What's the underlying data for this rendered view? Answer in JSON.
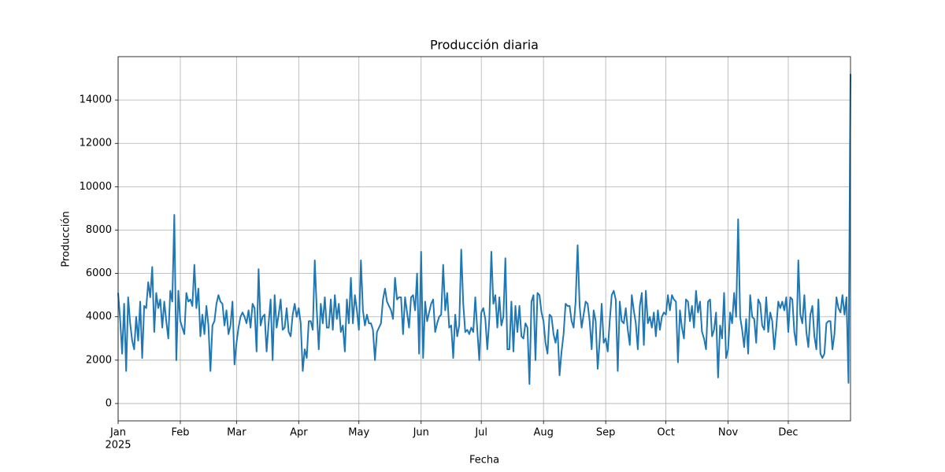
{
  "chart_data": {
    "type": "line",
    "title": "Producción diaria",
    "x_label": "Fecha",
    "y_label": "Producción",
    "x_year_label": "2025",
    "color": "#1f77b4",
    "grid": true,
    "xlim": [
      0,
      365
    ],
    "xticks": [
      {
        "value": 0,
        "label": "Jan"
      },
      {
        "value": 31,
        "label": "Feb"
      },
      {
        "value": 59,
        "label": "Mar"
      },
      {
        "value": 90,
        "label": "Apr"
      },
      {
        "value": 120,
        "label": "May"
      },
      {
        "value": 151,
        "label": "Jun"
      },
      {
        "value": 181,
        "label": "Jul"
      },
      {
        "value": 212,
        "label": "Aug"
      },
      {
        "value": 243,
        "label": "Sep"
      },
      {
        "value": 273,
        "label": "Oct"
      },
      {
        "value": 304,
        "label": "Nov"
      },
      {
        "value": 334,
        "label": "Dec"
      }
    ],
    "ylim": [
      -800,
      16000
    ],
    "yticks": [
      0,
      2000,
      4000,
      6000,
      8000,
      10000,
      12000,
      14000
    ],
    "values": [
      5100,
      3900,
      2300,
      4600,
      1500,
      4900,
      3700,
      2900,
      2500,
      4000,
      2900,
      4700,
      2100,
      4500,
      4400,
      5600,
      4900,
      6300,
      3300,
      5100,
      4400,
      4800,
      3500,
      4700,
      3800,
      3000,
      5200,
      4700,
      8700,
      2000,
      5200,
      3800,
      3500,
      3200,
      5100,
      4700,
      4800,
      4500,
      6400,
      4400,
      5300,
      3100,
      4100,
      3200,
      4500,
      3600,
      1500,
      3600,
      3800,
      4600,
      5000,
      4700,
      4600,
      3600,
      4300,
      3200,
      3600,
      4700,
      1800,
      2800,
      3500,
      4000,
      4200,
      4000,
      3700,
      4300,
      3500,
      4600,
      4400,
      2400,
      6200,
      3600,
      4000,
      4100,
      2400,
      3700,
      4800,
      2000,
      5000,
      3500,
      4100,
      4800,
      3400,
      3500,
      4400,
      3300,
      3100,
      4100,
      4600,
      4000,
      4400,
      3700,
      1500,
      2500,
      2100,
      3800,
      3800,
      3400,
      6600,
      4300,
      2500,
      4600,
      3700,
      4900,
      3500,
      3500,
      4800,
      3400,
      5000,
      3900,
      4600,
      3300,
      3600,
      2400,
      4800,
      3700,
      5800,
      3700,
      5000,
      4300,
      3400,
      6600,
      4300,
      3600,
      4100,
      3700,
      3700,
      3400,
      2000,
      3300,
      3500,
      3700,
      4800,
      5300,
      4700,
      4500,
      4300,
      3900,
      5800,
      4800,
      4900,
      4900,
      3200,
      4900,
      4200,
      3500,
      4900,
      5000,
      4300,
      6000,
      2300,
      7000,
      2100,
      4700,
      3800,
      4200,
      4600,
      4800,
      3300,
      3700,
      4000,
      4100,
      6400,
      4300,
      5100,
      3500,
      3600,
      2100,
      4100,
      3100,
      3600,
      7100,
      4600,
      3300,
      3400,
      3200,
      3500,
      3300,
      4900,
      3400,
      2000,
      4200,
      4400,
      3900,
      2500,
      3900,
      7000,
      4600,
      5000,
      3500,
      4900,
      3600,
      4000,
      6700,
      2500,
      2500,
      4700,
      2400,
      4500,
      3300,
      4500,
      3100,
      3000,
      3700,
      3500,
      900,
      4700,
      5000,
      2000,
      5100,
      5000,
      4200,
      3800,
      2800,
      2300,
      4100,
      4000,
      3200,
      2800,
      3400,
      1300,
      2400,
      3200,
      4600,
      4500,
      4500,
      3800,
      3500,
      4700,
      7300,
      4500,
      3500,
      4100,
      4700,
      4600,
      3800,
      2500,
      4300,
      3800,
      1600,
      2900,
      4600,
      2800,
      3000,
      2400,
      3800,
      5000,
      5200,
      4800,
      1500,
      4700,
      3800,
      3700,
      4400,
      3400,
      2700,
      5000,
      4300,
      3700,
      2500,
      4500,
      5100,
      2700,
      5200,
      3700,
      4000,
      3500,
      4200,
      3100,
      4300,
      3400,
      4000,
      4200,
      4100,
      5000,
      4300,
      5000,
      4800,
      4700,
      1900,
      4300,
      3500,
      3000,
      4800,
      4700,
      3800,
      4500,
      3500,
      5200,
      4200,
      4700,
      3300,
      3000,
      2500,
      4700,
      4800,
      3100,
      3400,
      4200,
      1200,
      3600,
      3000,
      5100,
      2100,
      2500,
      4200,
      3700,
      5100,
      4000,
      8500,
      4000,
      3400,
      2600,
      3900,
      2300,
      5000,
      4000,
      3900,
      2800,
      4800,
      4600,
      3600,
      3400,
      4900,
      3300,
      4200,
      3800,
      2500,
      3500,
      4700,
      4400,
      4700,
      4300,
      4900,
      3300,
      4900,
      4800,
      3300,
      2700,
      6600,
      4100,
      3700,
      5000,
      3300,
      2600,
      4100,
      4500,
      3100,
      2500,
      4800,
      2300,
      2100,
      2300,
      3700,
      3800,
      3800,
      2500,
      3200,
      4900,
      4400,
      4200,
      5000,
      4100,
      4900,
      950,
      15200
    ]
  }
}
